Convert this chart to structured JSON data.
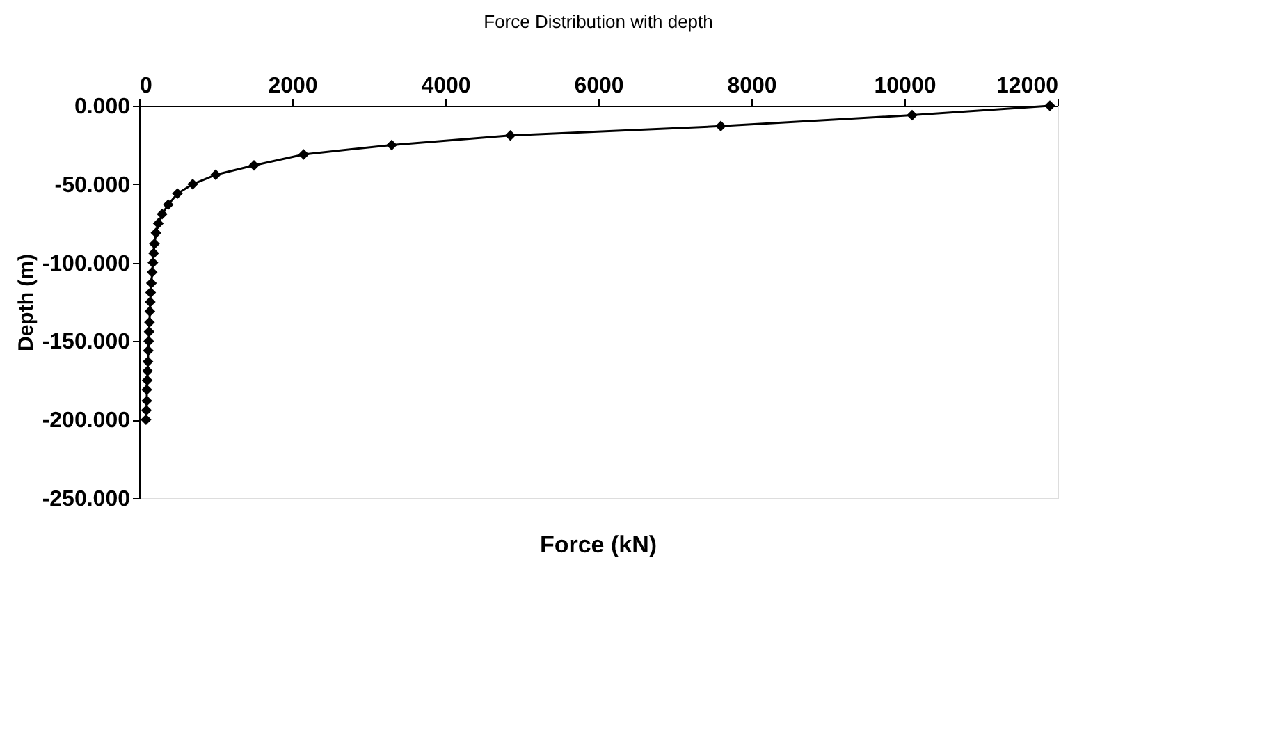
{
  "chart_data": {
    "type": "line",
    "title": "Force Distribution with depth",
    "xlabel": "Force (kN)",
    "ylabel": "Depth (m)",
    "x": [
      11900,
      10100,
      7600,
      4850,
      3300,
      2150,
      1500,
      1000,
      700,
      500,
      380,
      300,
      250,
      220,
      200,
      190,
      180,
      170,
      160,
      150,
      145,
      140,
      135,
      130,
      125,
      120,
      115,
      110,
      105,
      100,
      100,
      95,
      90
    ],
    "series": [
      {
        "color": "#000000",
        "values": [
          0,
          -6,
          -13,
          -19,
          -25,
          -31,
          -38,
          -44,
          -50,
          -56,
          -63,
          -69,
          -75,
          -81,
          -88,
          -94,
          -100,
          -106,
          -113,
          -119,
          -125,
          -131,
          -138,
          -144,
          -150,
          -156,
          -163,
          -169,
          -175,
          -181,
          -188,
          -194,
          -200
        ]
      }
    ],
    "xlim": [
      0,
      12000
    ],
    "xticks": [
      0,
      2000,
      4000,
      6000,
      8000,
      10000,
      12000
    ],
    "ylim": [
      -250,
      0
    ],
    "yticks": [
      {
        "value": 0,
        "label": "0.000"
      },
      {
        "value": -50,
        "label": "-50.000"
      },
      {
        "value": -100,
        "label": "-100.000"
      },
      {
        "value": -150,
        "label": "-150.000"
      },
      {
        "value": -200,
        "label": "-200.000"
      },
      {
        "value": -250,
        "label": "-250.000"
      }
    ],
    "marker": "diamond",
    "line_style": "solid",
    "grid": false
  }
}
